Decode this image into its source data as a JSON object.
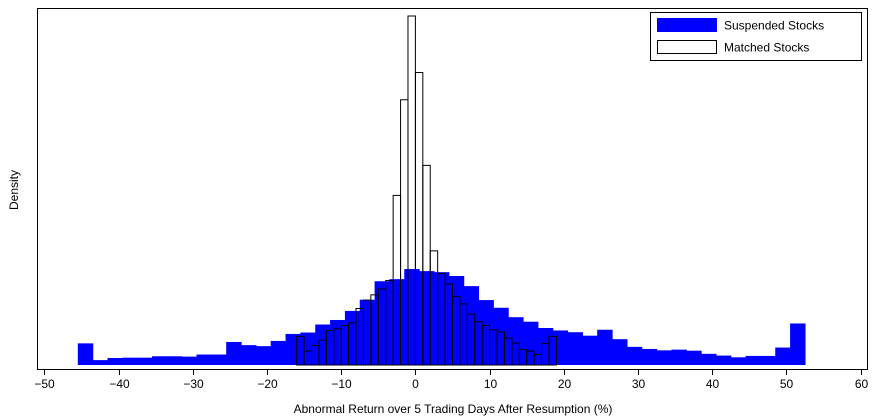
{
  "chart_data": {
    "type": "bar",
    "xlabel": "Abnormal Return over 5 Trading Days After Resumption (%)",
    "ylabel": "Density",
    "xlim": [
      -51,
      61
    ],
    "ylim": [
      0,
      1
    ],
    "x_ticks": [
      -50,
      -40,
      -30,
      -20,
      -10,
      0,
      10,
      20,
      30,
      40,
      50,
      60
    ],
    "legend_position": "top-right",
    "grid": false,
    "series": [
      {
        "name": "Suspended Stocks",
        "fill": "#0000ff",
        "bin_width": 2,
        "bins": [
          {
            "x0": -45.5,
            "y": 0.062
          },
          {
            "x0": -43.5,
            "y": 0.014
          },
          {
            "x0": -41.5,
            "y": 0.02
          },
          {
            "x0": -39.5,
            "y": 0.021
          },
          {
            "x0": -37.5,
            "y": 0.021
          },
          {
            "x0": -35.5,
            "y": 0.025
          },
          {
            "x0": -33.5,
            "y": 0.025
          },
          {
            "x0": -31.5,
            "y": 0.024
          },
          {
            "x0": -29.5,
            "y": 0.03
          },
          {
            "x0": -27.5,
            "y": 0.03
          },
          {
            "x0": -25.5,
            "y": 0.066
          },
          {
            "x0": -23.5,
            "y": 0.057
          },
          {
            "x0": -21.5,
            "y": 0.054
          },
          {
            "x0": -19.5,
            "y": 0.069
          },
          {
            "x0": -17.5,
            "y": 0.089
          },
          {
            "x0": -15.5,
            "y": 0.093
          },
          {
            "x0": -13.5,
            "y": 0.116
          },
          {
            "x0": -11.5,
            "y": 0.129
          },
          {
            "x0": -9.5,
            "y": 0.155
          },
          {
            "x0": -7.5,
            "y": 0.187
          },
          {
            "x0": -5.5,
            "y": 0.24
          },
          {
            "x0": -3.5,
            "y": 0.246
          },
          {
            "x0": -1.5,
            "y": 0.275
          },
          {
            "x0": 0.5,
            "y": 0.269
          },
          {
            "x0": 2.5,
            "y": 0.266
          },
          {
            "x0": 4.5,
            "y": 0.255
          },
          {
            "x0": 6.5,
            "y": 0.226
          },
          {
            "x0": 8.5,
            "y": 0.186
          },
          {
            "x0": 10.5,
            "y": 0.164
          },
          {
            "x0": 12.5,
            "y": 0.137
          },
          {
            "x0": 14.5,
            "y": 0.124
          },
          {
            "x0": 16.5,
            "y": 0.106
          },
          {
            "x0": 18.5,
            "y": 0.099
          },
          {
            "x0": 20.5,
            "y": 0.094
          },
          {
            "x0": 22.5,
            "y": 0.084
          },
          {
            "x0": 24.5,
            "y": 0.101
          },
          {
            "x0": 26.5,
            "y": 0.074
          },
          {
            "x0": 28.5,
            "y": 0.052
          },
          {
            "x0": 30.5,
            "y": 0.046
          },
          {
            "x0": 32.5,
            "y": 0.042
          },
          {
            "x0": 34.5,
            "y": 0.044
          },
          {
            "x0": 36.5,
            "y": 0.041
          },
          {
            "x0": 38.5,
            "y": 0.032
          },
          {
            "x0": 40.5,
            "y": 0.027
          },
          {
            "x0": 42.5,
            "y": 0.022
          },
          {
            "x0": 44.5,
            "y": 0.026
          },
          {
            "x0": 46.5,
            "y": 0.026
          },
          {
            "x0": 48.5,
            "y": 0.05
          },
          {
            "x0": 50.5,
            "y": 0.119
          }
        ]
      },
      {
        "name": "Matched Stocks",
        "fill": "none",
        "bin_width": 1,
        "bins": [
          {
            "x0": -16,
            "y": 0.082
          },
          {
            "x0": -15,
            "y": 0.04
          },
          {
            "x0": -14,
            "y": 0.056
          },
          {
            "x0": -13,
            "y": 0.071
          },
          {
            "x0": -12,
            "y": 0.099
          },
          {
            "x0": -11,
            "y": 0.104
          },
          {
            "x0": -10,
            "y": 0.113
          },
          {
            "x0": -9,
            "y": 0.121
          },
          {
            "x0": -8,
            "y": 0.162
          },
          {
            "x0": -7,
            "y": 0.186
          },
          {
            "x0": -6,
            "y": 0.201
          },
          {
            "x0": -5,
            "y": 0.218
          },
          {
            "x0": -4,
            "y": 0.242
          },
          {
            "x0": -3,
            "y": 0.486
          },
          {
            "x0": -2,
            "y": 0.76
          },
          {
            "x0": -1,
            "y": 1.0
          },
          {
            "x0": 0,
            "y": 0.838
          },
          {
            "x0": 1,
            "y": 0.572
          },
          {
            "x0": 2,
            "y": 0.327
          },
          {
            "x0": 3,
            "y": 0.262
          },
          {
            "x0": 4,
            "y": 0.232
          },
          {
            "x0": 5,
            "y": 0.196
          },
          {
            "x0": 6,
            "y": 0.175
          },
          {
            "x0": 7,
            "y": 0.146
          },
          {
            "x0": 8,
            "y": 0.124
          },
          {
            "x0": 9,
            "y": 0.113
          },
          {
            "x0": 10,
            "y": 0.101
          },
          {
            "x0": 11,
            "y": 0.095
          },
          {
            "x0": 12,
            "y": 0.077
          },
          {
            "x0": 13,
            "y": 0.063
          },
          {
            "x0": 14,
            "y": 0.045
          },
          {
            "x0": 15,
            "y": 0.04
          },
          {
            "x0": 16,
            "y": 0.03
          },
          {
            "x0": 17,
            "y": 0.062
          },
          {
            "x0": 18,
            "y": 0.082
          }
        ]
      }
    ]
  }
}
